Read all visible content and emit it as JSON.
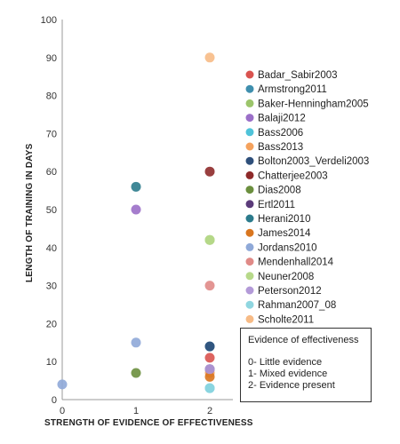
{
  "chart_data": {
    "type": "scatter",
    "title": "",
    "xlabel": "STRENGTH OF EVIDENCE OF EFFECTIVENESS",
    "ylabel": "LENGTH OF TRAINING IN DAYS",
    "xlim": [
      0,
      2
    ],
    "ylim": [
      0,
      100
    ],
    "x_ticks": [
      "0",
      "1",
      "2"
    ],
    "y_ticks": [
      "0",
      "10",
      "20",
      "30",
      "40",
      "50",
      "60",
      "70",
      "80",
      "90",
      "100"
    ],
    "grid": false,
    "legend_position": "right",
    "series": [
      {
        "name": "Badar_Sabir2003",
        "color": "#d9534f",
        "x": [
          2
        ],
        "y": [
          11
        ]
      },
      {
        "name": "Armstrong2011",
        "color": "#3f8fae",
        "x": [
          2
        ],
        "y": [
          14
        ]
      },
      {
        "name": "Baker-Henningham2005",
        "color": "#9cc56b",
        "x": [
          2
        ],
        "y": [
          42
        ]
      },
      {
        "name": "Balaji2012",
        "color": "#9b6fc8",
        "x": [
          1
        ],
        "y": [
          50
        ]
      },
      {
        "name": "Bass2006",
        "color": "#4fc3d9",
        "x": [
          2
        ],
        "y": [
          3
        ]
      },
      {
        "name": "Bass2013",
        "color": "#f5a25d",
        "x": [
          2
        ],
        "y": [
          7
        ]
      },
      {
        "name": "Bolton2003_Verdeli2003",
        "color": "#2e4f7a",
        "x": [
          2
        ],
        "y": [
          14
        ]
      },
      {
        "name": "Chatterjee2003",
        "color": "#8e2a2a",
        "x": [
          2
        ],
        "y": [
          60
        ]
      },
      {
        "name": "Dias2008",
        "color": "#6b8f3e",
        "x": [
          1
        ],
        "y": [
          7
        ]
      },
      {
        "name": "Ertl2011",
        "color": "#5b3b7a",
        "x": [
          2
        ],
        "y": [
          8
        ]
      },
      {
        "name": "Herani2010",
        "color": "#2b7b8c",
        "x": [
          1
        ],
        "y": [
          56
        ]
      },
      {
        "name": "James2014",
        "color": "#d9761f",
        "x": [
          2
        ],
        "y": [
          6
        ]
      },
      {
        "name": "Jordans2010",
        "color": "#8fa9d8",
        "x": [
          1,
          0
        ],
        "y": [
          15,
          4
        ]
      },
      {
        "name": "Mendenhall2014",
        "color": "#e08a87",
        "x": [
          2
        ],
        "y": [
          30
        ]
      },
      {
        "name": "Neuner2008",
        "color": "#b7d98a",
        "x": [
          2
        ],
        "y": [
          42
        ]
      },
      {
        "name": "Peterson2012",
        "color": "#b39ad8",
        "x": [
          2
        ],
        "y": [
          8
        ]
      },
      {
        "name": "Rahman2007_08",
        "color": "#8fd6e0",
        "x": [
          2
        ],
        "y": [
          3
        ]
      },
      {
        "name": "Scholte2011",
        "color": "#f7bb86",
        "x": [
          2
        ],
        "y": [
          90
        ]
      }
    ]
  },
  "evidence_box": {
    "title": "Evidence of effectiveness",
    "items": [
      "0- Little evidence",
      "1- Mixed evidence",
      "2- Evidence present"
    ]
  }
}
